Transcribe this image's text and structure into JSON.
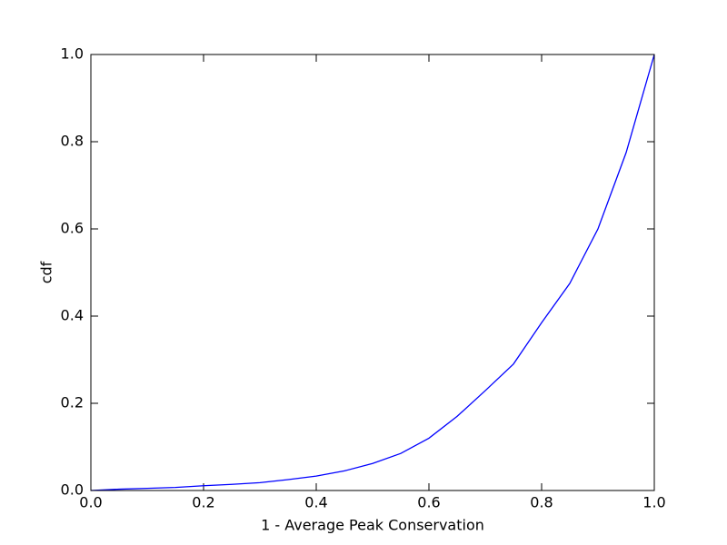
{
  "chart_data": {
    "type": "line",
    "xlabel": "1 - Average Peak Conservation",
    "ylabel": "cdf",
    "x": [
      0,
      0.05,
      0.1,
      0.15,
      0.2,
      0.25,
      0.3,
      0.35,
      0.4,
      0.45,
      0.5,
      0.55,
      0.6,
      0.65,
      0.7,
      0.75,
      0.8,
      0.85,
      0.9,
      0.95,
      1
    ],
    "series": [
      {
        "color": "#0000ff",
        "values": [
          0,
          0.003,
          0.005,
          0.007,
          0.011,
          0.014,
          0.018,
          0.025,
          0.033,
          0.045,
          0.062,
          0.085,
          0.12,
          0.17,
          0.229,
          0.29,
          0.385,
          0.475,
          0.6,
          0.775,
          1
        ]
      }
    ],
    "xlim": [
      0,
      1
    ],
    "ylim": [
      0,
      1
    ],
    "xticks": [
      {
        "value": 0,
        "label": "0.0"
      },
      0.2,
      0.4,
      0.6,
      0.8,
      {
        "value": 1,
        "label": "1.0"
      }
    ],
    "yticks": [
      {
        "value": 0,
        "label": "0.0"
      },
      0.2,
      0.4,
      0.6,
      0.8,
      {
        "value": 1,
        "label": "1.0"
      }
    ]
  }
}
